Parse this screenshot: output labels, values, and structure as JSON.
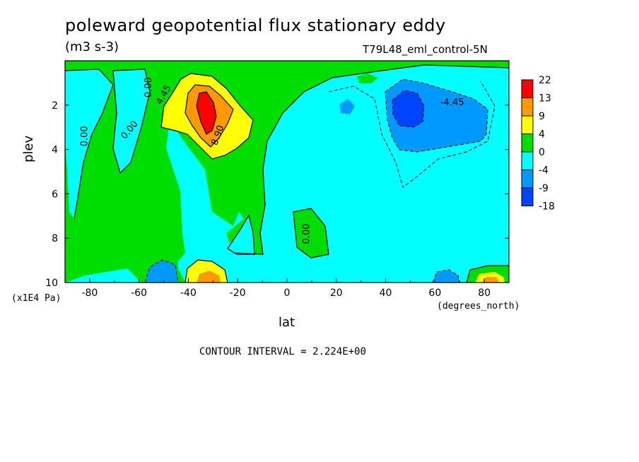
{
  "chart_data": {
    "type": "heatmap",
    "title": "poleward geopotential flux stationary eddy",
    "units": "(m3 s-3)",
    "run_label": "T79L48_eml_control-5N",
    "xlabel": "lat",
    "x_unit": "(degrees_north)",
    "ylabel": "plev",
    "y_unit": "(x1E4 Pa)",
    "xlim": [
      -90,
      90
    ],
    "ylim": [
      0,
      10
    ],
    "y_inverted": true,
    "x_ticks": [
      -80,
      -60,
      -40,
      -20,
      0,
      20,
      40,
      60,
      80
    ],
    "y_ticks": [
      2,
      4,
      6,
      8,
      10
    ],
    "contour_interval_text": "CONTOUR INTERVAL = 2.224E+00",
    "contour_labels": [
      "4.45",
      "8.90",
      "0.00",
      "-4.45"
    ],
    "colorbar": {
      "levels": [
        "22",
        "13",
        "9",
        "4",
        "0",
        "-4",
        "-9",
        "-18"
      ],
      "colors": [
        "#ff0000",
        "#ff9900",
        "#ffff00",
        "#00dd00",
        "#00ffff",
        "#0099ff",
        "#0044ff"
      ]
    },
    "features": [
      {
        "lat": -32,
        "plev": 2.5,
        "value": 20,
        "desc": "positive maximum"
      },
      {
        "lat": 46,
        "plev": 2.3,
        "value": -10,
        "desc": "negative minimum"
      },
      {
        "lat": 88,
        "plev": 9.8,
        "value": 10,
        "desc": "surface positive"
      },
      {
        "lat": -50,
        "plev": 9.7,
        "value": -6,
        "desc": "surface negative"
      }
    ]
  }
}
